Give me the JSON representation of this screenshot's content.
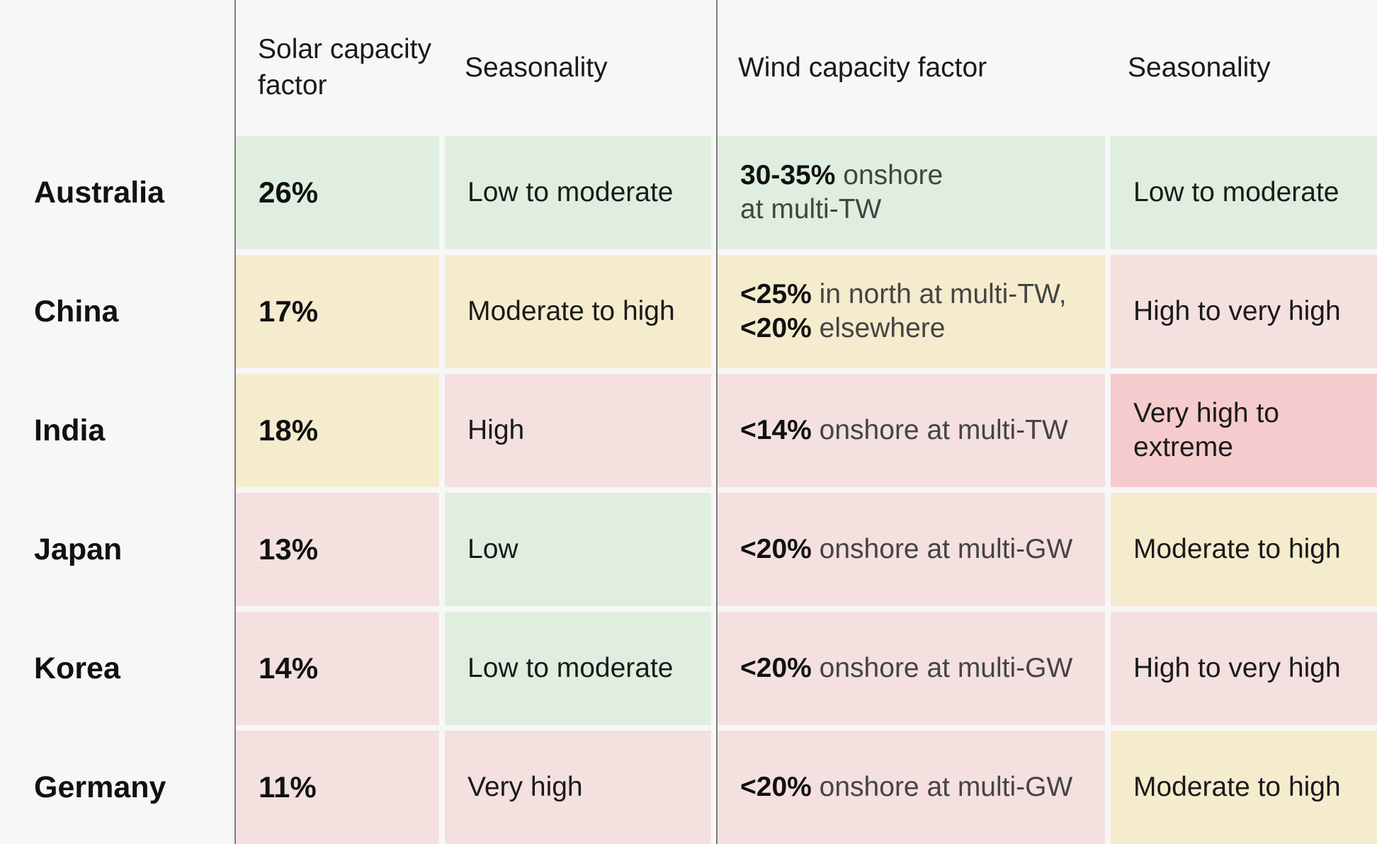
{
  "headers": {
    "solar_cf": "Solar capacity factor",
    "solar_seasonality": "Seasonality",
    "wind_cf": "Wind capacity factor",
    "wind_seasonality": "Seasonality"
  },
  "rows": [
    {
      "country": "Australia",
      "solar_cf": "26%",
      "solar_seasonality": "Low to moderate",
      "wind_cf_bold_1": "30-35%",
      "wind_cf_rest_1": " onshore",
      "wind_cf_bold_2": "",
      "wind_cf_rest_2": "at multi-TW",
      "wind_seasonality": "Low to moderate"
    },
    {
      "country": "China",
      "solar_cf": "17%",
      "solar_seasonality": "Moderate to high",
      "wind_cf_bold_1": "<25%",
      "wind_cf_rest_1": " in north at multi-TW,",
      "wind_cf_bold_2": "<20%",
      "wind_cf_rest_2": " elsewhere",
      "wind_seasonality": "High to very high"
    },
    {
      "country": "India",
      "solar_cf": "18%",
      "solar_seasonality": "High",
      "wind_cf_bold_1": "<14%",
      "wind_cf_rest_1": " onshore at multi-TW",
      "wind_seasonality": "Very high to extreme"
    },
    {
      "country": "Japan",
      "solar_cf": "13%",
      "solar_seasonality": "Low",
      "wind_cf_bold_1": "<20%",
      "wind_cf_rest_1": " onshore at multi-GW",
      "wind_seasonality": "Moderate to high"
    },
    {
      "country": "Korea",
      "solar_cf": "14%",
      "solar_seasonality": "Low to moderate",
      "wind_cf_bold_1": "<20%",
      "wind_cf_rest_1": " onshore at multi-GW",
      "wind_seasonality": "High to very high"
    },
    {
      "country": "Germany",
      "solar_cf": "11%",
      "solar_seasonality": "Very high",
      "wind_cf_bold_1": "<20%",
      "wind_cf_rest_1": " onshore at multi-GW",
      "wind_seasonality": "Moderate to high"
    }
  ]
}
